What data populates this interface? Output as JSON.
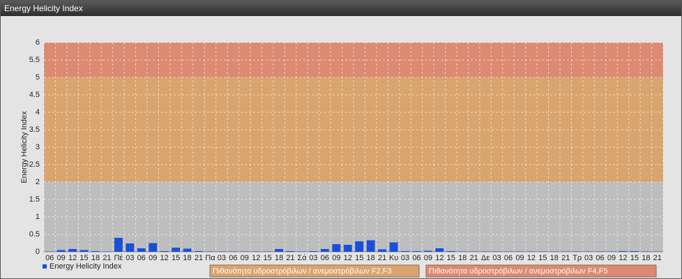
{
  "header": {
    "title": "Energy Helicity Index"
  },
  "chart_data": {
    "type": "bar",
    "ylabel": "Energy Helicity Index",
    "categories": [
      "06",
      "09",
      "12",
      "15",
      "18",
      "21",
      "Πέ",
      "03",
      "06",
      "09",
      "12",
      "15",
      "18",
      "21",
      "Πα",
      "03",
      "06",
      "09",
      "12",
      "15",
      "18",
      "21",
      "Σά",
      "03",
      "06",
      "09",
      "12",
      "15",
      "18",
      "21",
      "Κυ",
      "03",
      "06",
      "09",
      "12",
      "15",
      "18",
      "21",
      "Δε",
      "03",
      "06",
      "09",
      "12",
      "15",
      "18",
      "21",
      "Τρ",
      "03",
      "06",
      "09",
      "12",
      "15",
      "18",
      "21"
    ],
    "series": [
      {
        "name": "Energy Helicity Index",
        "color": "#1a4fd8",
        "values": [
          0.01,
          0.05,
          0.08,
          0.05,
          0.02,
          0.01,
          0.4,
          0.24,
          0.1,
          0.25,
          0.02,
          0.12,
          0.09,
          0.02,
          0.01,
          0.01,
          0.01,
          0.01,
          0.01,
          0.01,
          0.08,
          0.02,
          0.01,
          0.02,
          0.08,
          0.22,
          0.2,
          0.3,
          0.33,
          0.07,
          0.27,
          0.02,
          0.02,
          0.03,
          0.1,
          0.02,
          0.01,
          0.01,
          0.01,
          0.01,
          0.01,
          0.01,
          0.01,
          0.01,
          0.01,
          0.01,
          0.01,
          0.01,
          0.01,
          0.01,
          0.02,
          0.02,
          0.01,
          0.01
        ]
      }
    ],
    "bands": [
      {
        "name": "Πιθανότητα υδροστρόβιλων / ανεμοστρόβιλων F2,F3",
        "from": 2,
        "to": 5,
        "color": "#d9a46e"
      },
      {
        "name": "Πιθανότητα υδροστρόβιλων / ανεμοστρόβιλων F4,F5",
        "from": 5,
        "to": 6,
        "color": "#dc8a72"
      }
    ],
    "plot_background": "#bdbdbd",
    "ylim": [
      0,
      6
    ],
    "yticks": [
      0,
      0.5,
      1,
      1.5,
      2,
      2.5,
      3,
      3.5,
      4,
      4.5,
      5,
      5.5,
      6
    ],
    "grid": true
  }
}
